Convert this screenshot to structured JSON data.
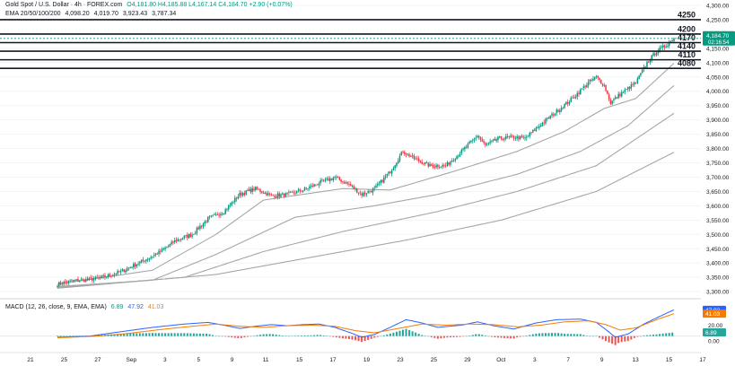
{
  "header": {
    "symbol": "Gold Spot / U.S. Dollar · 4h · FOREX.com",
    "ohlc": "O4,181.80 H4,185.88 L4,167.14 C4,184.70 +2.90 (+0.07%)",
    "ema_label": "EMA 20/50/100/200",
    "ema_values": [
      "4,098.20",
      "4,019.70",
      "3,923.43",
      "3,787.34"
    ]
  },
  "macd_header": {
    "label": "MACD (12, 26, close, 9, EMA, EMA)",
    "values": [
      "6.89",
      "47.92",
      "41.03"
    ]
  },
  "colors": {
    "up": "#089981",
    "down": "#f23645",
    "ema": "#a6a6a6",
    "macd": "#2962ff",
    "signal": "#f57c00",
    "hist_up": "#26a69a",
    "hist_down": "#ef5350"
  },
  "chart_data": {
    "type": "candlestick",
    "ylim": [
      3300,
      4300
    ],
    "y_ticks": [
      "4,300.00",
      "4,250.00",
      "4,200.00",
      "4,150.00",
      "4,100.00",
      "4,050.00",
      "4,000.00",
      "3,950.00",
      "3,900.00",
      "3,850.00",
      "3,800.00",
      "3,750.00",
      "3,700.00",
      "3,650.00",
      "3,600.00",
      "3,550.00",
      "3,500.00",
      "3,450.00",
      "3,400.00",
      "3,350.00",
      "3,300.00"
    ],
    "x_ticks": [
      "21",
      "25",
      "27",
      "Sep",
      "3",
      "5",
      "9",
      "11",
      "15",
      "17",
      "19",
      "23",
      "25",
      "29",
      "Oct",
      "3",
      "7",
      "9",
      "13",
      "15",
      "17"
    ],
    "levels": [
      {
        "label": "4250",
        "value": 4250
      },
      {
        "label": "4200",
        "value": 4200
      },
      {
        "label": "4170",
        "value": 4170
      },
      {
        "label": "4140",
        "value": 4140
      },
      {
        "label": "4110",
        "value": 4110
      },
      {
        "label": "4080",
        "value": 4080
      }
    ],
    "last_price": {
      "value": 4184.7,
      "label": "4,184.70",
      "countdown": "02:16:54"
    },
    "anchors": [
      [
        0,
        3327
      ],
      [
        10,
        3338
      ],
      [
        20,
        3342
      ],
      [
        30,
        3352
      ],
      [
        40,
        3370
      ],
      [
        55,
        3410
      ],
      [
        65,
        3440
      ],
      [
        75,
        3480
      ],
      [
        85,
        3500
      ],
      [
        95,
        3555
      ],
      [
        105,
        3580
      ],
      [
        115,
        3640
      ],
      [
        125,
        3660
      ],
      [
        135,
        3635
      ],
      [
        145,
        3640
      ],
      [
        155,
        3655
      ],
      [
        165,
        3680
      ],
      [
        175,
        3700
      ],
      [
        185,
        3670
      ],
      [
        192,
        3640
      ],
      [
        200,
        3658
      ],
      [
        210,
        3720
      ],
      [
        218,
        3790
      ],
      [
        225,
        3765
      ],
      [
        235,
        3740
      ],
      [
        245,
        3740
      ],
      [
        255,
        3790
      ],
      [
        265,
        3845
      ],
      [
        270,
        3810
      ],
      [
        278,
        3835
      ],
      [
        288,
        3840
      ],
      [
        295,
        3835
      ],
      [
        302,
        3870
      ],
      [
        315,
        3930
      ],
      [
        325,
        3975
      ],
      [
        335,
        4030
      ],
      [
        340,
        4050
      ],
      [
        345,
        4020
      ],
      [
        349,
        3960
      ],
      [
        355,
        3990
      ],
      [
        365,
        4030
      ],
      [
        372,
        4100
      ],
      [
        378,
        4140
      ],
      [
        384,
        4160
      ],
      [
        389,
        4184.7
      ]
    ],
    "ema": [
      {
        "name": "EMA 20",
        "points": [
          [
            0,
            3326
          ],
          [
            60,
            3375
          ],
          [
            100,
            3500
          ],
          [
            130,
            3620
          ],
          [
            180,
            3660
          ],
          [
            210,
            3655
          ],
          [
            250,
            3720
          ],
          [
            290,
            3790
          ],
          [
            320,
            3860
          ],
          [
            345,
            3940
          ],
          [
            365,
            3975
          ],
          [
            389,
            4098
          ]
        ]
      },
      {
        "name": "EMA 50",
        "points": [
          [
            0,
            3318
          ],
          [
            60,
            3340
          ],
          [
            100,
            3430
          ],
          [
            150,
            3560
          ],
          [
            200,
            3600
          ],
          [
            240,
            3640
          ],
          [
            290,
            3710
          ],
          [
            330,
            3790
          ],
          [
            360,
            3880
          ],
          [
            389,
            4020
          ]
        ]
      },
      {
        "name": "EMA 100",
        "points": [
          [
            0,
            3315
          ],
          [
            80,
            3350
          ],
          [
            130,
            3440
          ],
          [
            180,
            3510
          ],
          [
            240,
            3580
          ],
          [
            290,
            3650
          ],
          [
            340,
            3740
          ],
          [
            389,
            3923
          ]
        ]
      },
      {
        "name": "EMA 200",
        "points": [
          [
            0,
            3312
          ],
          [
            100,
            3360
          ],
          [
            160,
            3420
          ],
          [
            220,
            3480
          ],
          [
            280,
            3550
          ],
          [
            340,
            3650
          ],
          [
            389,
            3787
          ]
        ]
      }
    ],
    "macd": {
      "ylim": [
        -25,
        60
      ],
      "y_ticks": [
        "47.92",
        "41.03",
        "20.00",
        "6.89",
        "0.00"
      ],
      "macd": [
        [
          0,
          -2
        ],
        [
          20,
          0
        ],
        [
          40,
          8
        ],
        [
          60,
          16
        ],
        [
          80,
          22
        ],
        [
          95,
          25
        ],
        [
          105,
          20
        ],
        [
          115,
          14
        ],
        [
          125,
          18
        ],
        [
          135,
          21
        ],
        [
          145,
          19
        ],
        [
          155,
          21
        ],
        [
          165,
          22
        ],
        [
          175,
          16
        ],
        [
          185,
          6
        ],
        [
          192,
          -2
        ],
        [
          200,
          3
        ],
        [
          210,
          16
        ],
        [
          220,
          30
        ],
        [
          230,
          24
        ],
        [
          240,
          16
        ],
        [
          255,
          20
        ],
        [
          265,
          26
        ],
        [
          275,
          19
        ],
        [
          288,
          13
        ],
        [
          302,
          24
        ],
        [
          315,
          30
        ],
        [
          330,
          31
        ],
        [
          340,
          25
        ],
        [
          346,
          12
        ],
        [
          352,
          -2
        ],
        [
          360,
          4
        ],
        [
          370,
          22
        ],
        [
          380,
          36
        ],
        [
          389,
          47.9
        ]
      ],
      "signal": [
        [
          0,
          -3
        ],
        [
          25,
          0
        ],
        [
          45,
          5
        ],
        [
          65,
          12
        ],
        [
          85,
          18
        ],
        [
          100,
          22
        ],
        [
          115,
          18
        ],
        [
          130,
          16
        ],
        [
          145,
          19
        ],
        [
          160,
          20
        ],
        [
          175,
          18
        ],
        [
          188,
          10
        ],
        [
          200,
          6
        ],
        [
          215,
          14
        ],
        [
          230,
          22
        ],
        [
          245,
          20
        ],
        [
          260,
          22
        ],
        [
          275,
          21
        ],
        [
          290,
          17
        ],
        [
          305,
          20
        ],
        [
          320,
          26
        ],
        [
          335,
          28
        ],
        [
          346,
          21
        ],
        [
          355,
          11
        ],
        [
          365,
          15
        ],
        [
          378,
          30
        ],
        [
          389,
          41
        ]
      ]
    }
  }
}
